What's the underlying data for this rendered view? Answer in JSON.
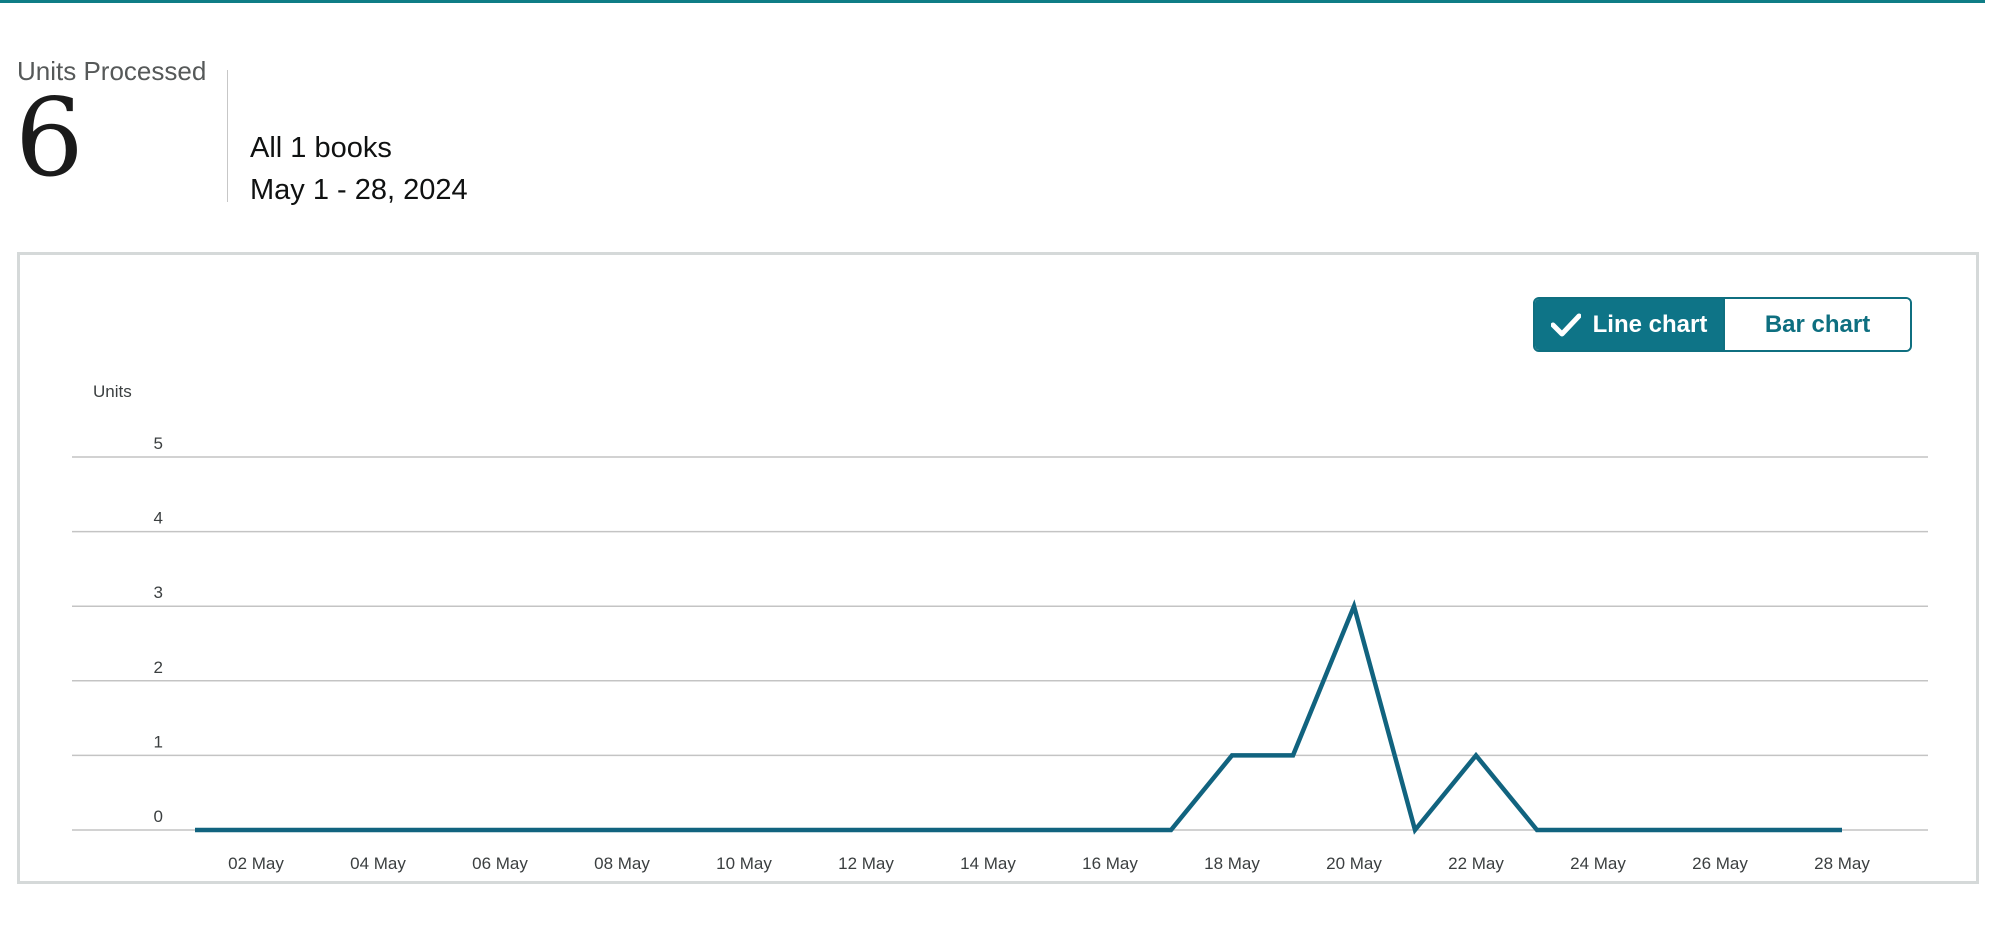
{
  "summary": {
    "label": "Units Processed",
    "value": "6",
    "scope": "All 1 books",
    "date_range": "May 1 - 28, 2024"
  },
  "toggle": {
    "line_label": "Line chart",
    "bar_label": "Bar chart",
    "active": "line"
  },
  "colors": {
    "accent": "#0e7487",
    "line": "#11637f",
    "grid": "#c4c4c4"
  },
  "chart_data": {
    "type": "line",
    "ylabel": "Units",
    "ylim": [
      0,
      5
    ],
    "yticks": [
      0,
      1,
      2,
      3,
      4,
      5
    ],
    "grid": true,
    "x": [
      "01 May",
      "02 May",
      "03 May",
      "04 May",
      "05 May",
      "06 May",
      "07 May",
      "08 May",
      "09 May",
      "10 May",
      "11 May",
      "12 May",
      "13 May",
      "14 May",
      "15 May",
      "16 May",
      "17 May",
      "18 May",
      "19 May",
      "20 May",
      "21 May",
      "22 May",
      "23 May",
      "24 May",
      "25 May",
      "26 May",
      "27 May",
      "28 May"
    ],
    "xticks": [
      "02 May",
      "04 May",
      "06 May",
      "08 May",
      "10 May",
      "12 May",
      "14 May",
      "16 May",
      "18 May",
      "20 May",
      "22 May",
      "24 May",
      "26 May",
      "28 May"
    ],
    "series": [
      {
        "values": [
          0,
          0,
          0,
          0,
          0,
          0,
          0,
          0,
          0,
          0,
          0,
          0,
          0,
          0,
          0,
          0,
          0,
          1,
          1,
          3,
          0,
          1,
          0,
          0,
          0,
          0,
          0,
          0
        ]
      }
    ]
  }
}
